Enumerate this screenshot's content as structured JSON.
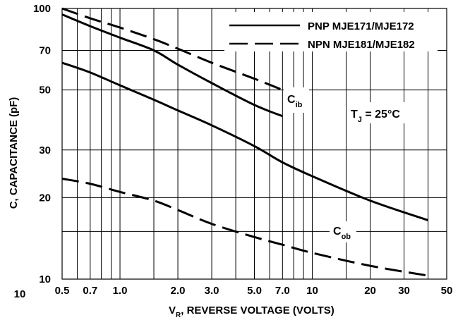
{
  "chart_data": {
    "type": "line",
    "x_scale": "log",
    "y_scale": "log",
    "xlim": [
      0.5,
      50
    ],
    "ylim": [
      10,
      100
    ],
    "xlabel_main": "V",
    "xlabel_sub": "R",
    "xlabel_rest": ", REVERSE VOLTAGE (VOLTS)",
    "ylabel": "C, CAPACITANCE (pF)",
    "x_ticks": [
      {
        "value": 0.5,
        "label": "0.5"
      },
      {
        "value": 0.7,
        "label": "0.7"
      },
      {
        "value": 1,
        "label": "1.0"
      },
      {
        "value": 2,
        "label": "2.0"
      },
      {
        "value": 3,
        "label": "3.0"
      },
      {
        "value": 5,
        "label": "5.0"
      },
      {
        "value": 7,
        "label": "7.0"
      },
      {
        "value": 10,
        "label": "10"
      },
      {
        "value": 20,
        "label": "20"
      },
      {
        "value": 30,
        "label": "30"
      },
      {
        "value": 50,
        "label": "50"
      }
    ],
    "x_minor_gridlines": [
      0.6,
      0.8,
      0.9,
      1.5,
      4,
      6,
      8,
      9,
      15,
      40
    ],
    "y_ticks": [
      {
        "value": 100,
        "label": "100"
      },
      {
        "value": 70,
        "label": "70"
      },
      {
        "value": 50,
        "label": "50"
      },
      {
        "value": 30,
        "label": "30"
      },
      {
        "value": 20,
        "label": "20"
      },
      {
        "value": 10,
        "label": "10"
      }
    ],
    "y_minor_gridlines": [
      15
    ],
    "extra_corner_label": "10",
    "grid": true,
    "legend_position": "top-right",
    "legend": [
      {
        "label": "PNP MJE171/MJE172",
        "style": "solid"
      },
      {
        "label": "NPN MJE181/MJE182",
        "style": "dashed"
      }
    ],
    "series": [
      {
        "style": "solid",
        "label_ref": "Cib",
        "x": [
          0.5,
          0.7,
          1,
          1.5,
          2,
          3,
          5,
          7
        ],
        "y": [
          95,
          86,
          78,
          70,
          62,
          53,
          44,
          40
        ]
      },
      {
        "style": "dashed",
        "label_ref": "Cib",
        "x": [
          0.5,
          0.7,
          1,
          1.5,
          2,
          3,
          5,
          7
        ],
        "y": [
          100,
          92,
          85,
          77,
          71,
          63,
          55,
          50
        ]
      },
      {
        "style": "solid",
        "label_ref": "Cob",
        "x": [
          0.5,
          0.7,
          1,
          1.5,
          2,
          3,
          5,
          7,
          10,
          20,
          40
        ],
        "y": [
          63,
          58,
          52,
          46,
          42,
          37,
          31,
          27,
          24,
          19.5,
          16.5
        ]
      },
      {
        "style": "dashed",
        "label_ref": "Cob",
        "x": [
          0.5,
          0.7,
          1,
          1.5,
          2,
          3,
          5,
          7,
          10,
          20,
          40
        ],
        "y": [
          23.5,
          22.5,
          21,
          19.5,
          18,
          16,
          14.3,
          13.4,
          12.5,
          11.2,
          10.3
        ]
      }
    ],
    "annotations": {
      "cib": {
        "main": "C",
        "sub": "ib"
      },
      "cob": {
        "main": "C",
        "sub": "ob"
      },
      "tj": {
        "pre": "T",
        "sub": "J",
        "post": " = 25°C"
      }
    }
  }
}
